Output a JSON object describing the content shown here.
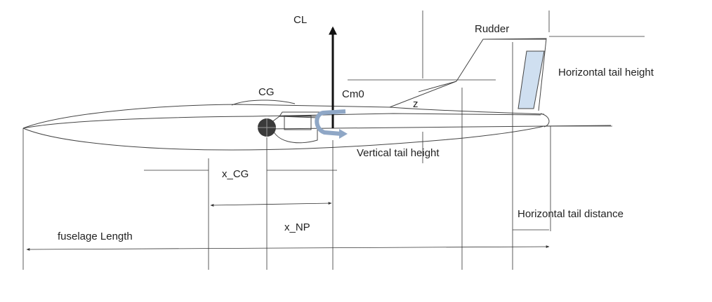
{
  "labels": {
    "cl": "CL",
    "rudder": "Rudder",
    "horizontal_tail_height": "Horizontal tail height",
    "cg": "CG",
    "cm0": "Cm0",
    "z": "z",
    "vertical_tail_height": "Vertical tail height",
    "x_cg": "x_CG",
    "x_np": "x_NP",
    "horizontal_tail_distance": "Horizontal tail distance",
    "fuselage_length": "fuselage Length"
  },
  "colors": {
    "line": "#333333",
    "tail_fill": "#cfdff0",
    "moment_arrow": "#8fa7c6",
    "cg_symbol": "#3a3a3a"
  }
}
